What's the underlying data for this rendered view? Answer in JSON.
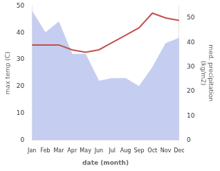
{
  "chart_data": {
    "type": "line",
    "categories": [
      "Jan",
      "Feb",
      "Mar",
      "Apr",
      "May",
      "Jun",
      "Jul",
      "Aug",
      "Sep",
      "Oct",
      "Nov",
      "Dec"
    ],
    "series": [
      {
        "type": "area",
        "color": "#c5cdf0",
        "values": [
          48,
          40,
          44,
          32,
          32,
          22,
          23,
          23,
          20,
          27,
          36,
          38
        ]
      },
      {
        "type": "line",
        "color": "#c0504d",
        "axis": "y2",
        "values": [
          39,
          39,
          39,
          37,
          36,
          37,
          40,
          43,
          46,
          52,
          50,
          49
        ]
      }
    ],
    "xlabel": "date (month)",
    "ylabel": "max temp (C)",
    "y2label": "med. precipitation\n(kg/m2)",
    "ylim": [
      0,
      50
    ],
    "yticks": [
      0,
      10,
      20,
      30,
      40,
      50
    ],
    "y2lim": [
      0,
      55
    ],
    "y2ticks": [
      0,
      10,
      20,
      30,
      40,
      50
    ],
    "grid": false
  }
}
